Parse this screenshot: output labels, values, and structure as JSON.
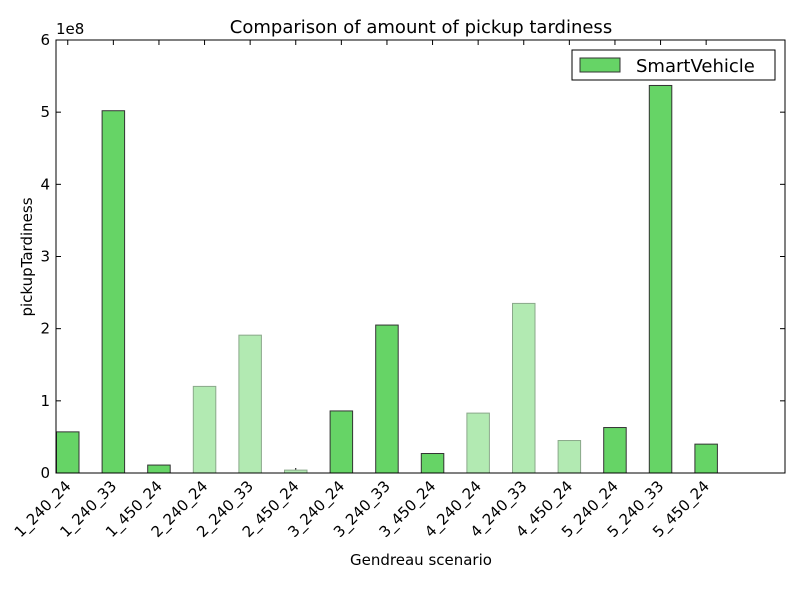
{
  "chart_data": {
    "type": "bar",
    "title": "Comparison of amount of pickup tardiness",
    "xlabel": "Gendreau scenario",
    "ylabel": "pickupTardiness",
    "scale_note": "1e8",
    "ylim": [
      0,
      6
    ],
    "yticks": [
      "0",
      "1",
      "2",
      "3",
      "4",
      "5",
      "6"
    ],
    "legend_position": "top-right",
    "series": [
      {
        "name": "SmartVehicle",
        "color": "#66d466",
        "light_color": "#b2eab2",
        "categories": [
          "1_240_24",
          "1_240_33",
          "1_450_24",
          "2_240_24",
          "2_240_33",
          "2_450_24",
          "3_240_24",
          "3_240_33",
          "3_450_24",
          "4_240_24",
          "4_240_33",
          "4_450_24",
          "5_240_24",
          "5_240_33",
          "5_450_24"
        ],
        "values": [
          0.57,
          5.02,
          0.11,
          1.2,
          1.91,
          0.04,
          0.86,
          2.05,
          0.27,
          0.83,
          2.35,
          0.45,
          0.63,
          5.37,
          0.4
        ],
        "shade": [
          "dark",
          "dark",
          "dark",
          "light",
          "light",
          "light",
          "dark",
          "dark",
          "dark",
          "light",
          "light",
          "light",
          "dark",
          "dark",
          "dark"
        ]
      }
    ]
  }
}
